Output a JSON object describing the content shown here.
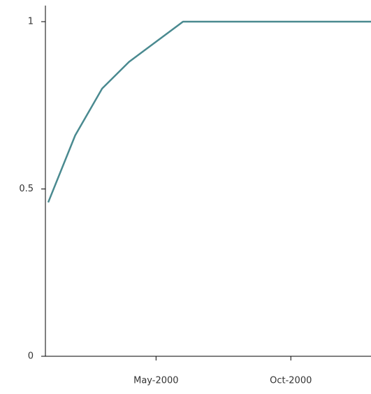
{
  "chart_data": {
    "type": "line",
    "x": [
      "2000-01",
      "2000-02",
      "2000-03",
      "2000-04",
      "2000-05",
      "2000-06",
      "2000-07",
      "2000-08",
      "2000-09",
      "2000-10",
      "2000-11",
      "2000-12",
      "2001-01"
    ],
    "series": [
      {
        "color": "#4a8a90",
        "values": [
          0.46,
          0.66,
          0.8,
          0.88,
          0.94,
          1,
          1,
          1,
          1,
          1,
          1,
          1,
          1
        ]
      }
    ],
    "xlim": [
      "2000-01",
      "2001-01"
    ],
    "xticks": [
      {
        "value": "2000-05",
        "label": "May-2000"
      },
      {
        "value": "2000-10",
        "label": "Oct-2000"
      }
    ],
    "ylim": [
      0,
      1
    ],
    "yticks": [
      0,
      0.5,
      1
    ]
  }
}
